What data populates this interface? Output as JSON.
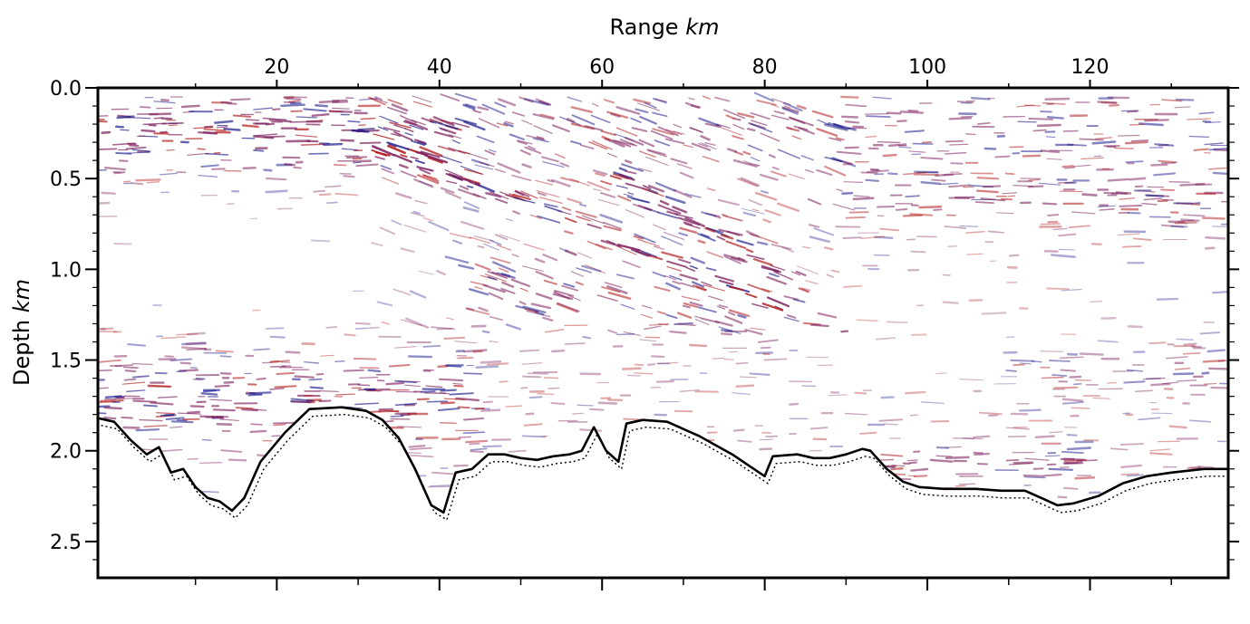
{
  "chart_data": {
    "type": "seismic-section",
    "x_axis": {
      "label_prefix": "Range ",
      "label_unit": "km",
      "position": "top",
      "range": [
        -2,
        137
      ],
      "ticks": [
        20,
        40,
        60,
        80,
        100,
        120
      ],
      "tick_labels": [
        "20",
        "40",
        "60",
        "80",
        "100",
        "120"
      ]
    },
    "y_axis": {
      "label_prefix": "Depth ",
      "label_unit": "km",
      "inverted": true,
      "range": [
        0.0,
        2.7
      ],
      "ticks": [
        0.0,
        0.5,
        1.0,
        1.5,
        2.0,
        2.5
      ],
      "tick_labels": [
        "0.0",
        "0.5",
        "1.0",
        "1.5",
        "2.0",
        "2.5"
      ]
    },
    "colors": {
      "positive": "#b01818",
      "negative": "#1a1a8c",
      "mix": "#7a1a5a",
      "seafloor": "#000000"
    },
    "seafloor_solid": {
      "x": [
        -2,
        0,
        2,
        4,
        5.5,
        7,
        8.5,
        10,
        11.5,
        13,
        14.5,
        16,
        18,
        21,
        24,
        28,
        31,
        33,
        35,
        37,
        39,
        40.5,
        42,
        44,
        46,
        48,
        50,
        52,
        54,
        56,
        57.5,
        59,
        60.5,
        62,
        63,
        65,
        68,
        70,
        72,
        74,
        76,
        78,
        80,
        81,
        84,
        86,
        88,
        90,
        92,
        93,
        95,
        97,
        99,
        102,
        106,
        109,
        112,
        114,
        116,
        118,
        121,
        124,
        127,
        130,
        134,
        137
      ],
      "y": [
        1.82,
        1.84,
        1.94,
        2.02,
        1.98,
        2.12,
        2.1,
        2.2,
        2.26,
        2.28,
        2.33,
        2.26,
        2.06,
        1.9,
        1.77,
        1.76,
        1.78,
        1.83,
        1.93,
        2.1,
        2.3,
        2.34,
        2.12,
        2.1,
        2.02,
        2.02,
        2.04,
        2.05,
        2.03,
        2.02,
        2.0,
        1.87,
        2.0,
        2.06,
        1.85,
        1.83,
        1.84,
        1.88,
        1.92,
        1.97,
        2.02,
        2.08,
        2.14,
        2.03,
        2.02,
        2.04,
        2.04,
        2.02,
        1.99,
        2.0,
        2.1,
        2.17,
        2.2,
        2.21,
        2.21,
        2.22,
        2.22,
        2.26,
        2.3,
        2.29,
        2.25,
        2.18,
        2.14,
        2.12,
        2.1,
        2.1
      ]
    },
    "seafloor_dotted_offset": 0.04,
    "noise_seed": 7331
  }
}
